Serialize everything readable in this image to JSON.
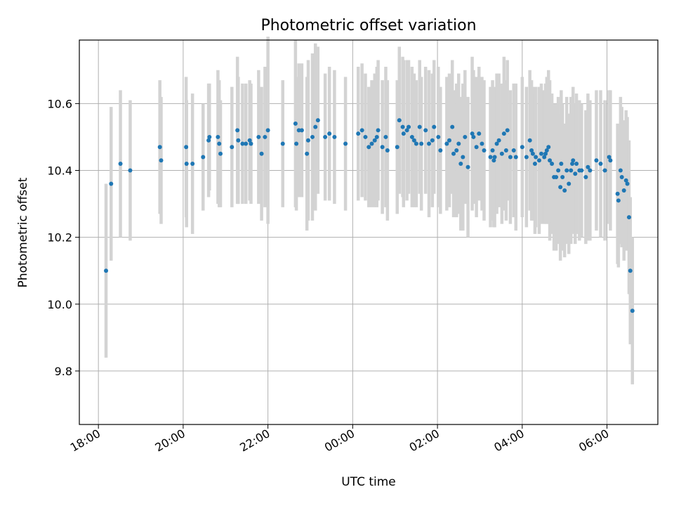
{
  "chart_data": {
    "type": "scatter",
    "title": "Photometric offset variation",
    "xlabel": "UTC time",
    "ylabel": "Photometric offset",
    "x_unit": "hours since 18:00 UTC",
    "xlim": [
      -0.45,
      13.2
    ],
    "ylim": [
      9.64,
      10.79
    ],
    "x_ticks": [
      0,
      2,
      4,
      6,
      8,
      10,
      12
    ],
    "x_tick_labels": [
      "18:00",
      "20:00",
      "22:00",
      "00:00",
      "02:00",
      "04:00",
      "06:00"
    ],
    "y_ticks": [
      9.8,
      10.0,
      10.2,
      10.4,
      10.6
    ],
    "y_tick_labels": [
      "9.8",
      "10.0",
      "10.2",
      "10.4",
      "10.6"
    ],
    "grid": true,
    "colors": {
      "point": "#1f77b4",
      "errorbar": "#d3d3d3",
      "grid": "#b0b0b0"
    },
    "points": [
      [
        0.18,
        10.1,
        0.26
      ],
      [
        0.3,
        10.36,
        0.23
      ],
      [
        0.52,
        10.42,
        0.22
      ],
      [
        0.75,
        10.4,
        0.21
      ],
      [
        1.45,
        10.47,
        0.2
      ],
      [
        1.48,
        10.43,
        0.19
      ],
      [
        2.07,
        10.47,
        0.21
      ],
      [
        2.08,
        10.42,
        0.19
      ],
      [
        2.22,
        10.42,
        0.21
      ],
      [
        2.47,
        10.44,
        0.16
      ],
      [
        2.6,
        10.49,
        0.17
      ],
      [
        2.62,
        10.5,
        0.16
      ],
      [
        2.82,
        10.5,
        0.2
      ],
      [
        2.85,
        10.48,
        0.19
      ],
      [
        2.88,
        10.45,
        0.16
      ],
      [
        3.15,
        10.47,
        0.18
      ],
      [
        3.28,
        10.52,
        0.22
      ],
      [
        3.3,
        10.49,
        0.19
      ],
      [
        3.4,
        10.48,
        0.18
      ],
      [
        3.48,
        10.48,
        0.18
      ],
      [
        3.57,
        10.49,
        0.18
      ],
      [
        3.6,
        10.48,
        0.18
      ],
      [
        3.78,
        10.5,
        0.2
      ],
      [
        3.85,
        10.45,
        0.2
      ],
      [
        3.93,
        10.5,
        0.21
      ],
      [
        4.0,
        10.52,
        0.28
      ],
      [
        4.35,
        10.48,
        0.19
      ],
      [
        4.65,
        10.54,
        0.25
      ],
      [
        4.67,
        10.48,
        0.2
      ],
      [
        4.73,
        10.52,
        0.2
      ],
      [
        4.8,
        10.52,
        0.2
      ],
      [
        4.92,
        10.45,
        0.23
      ],
      [
        4.95,
        10.49,
        0.24
      ],
      [
        5.05,
        10.5,
        0.25
      ],
      [
        5.12,
        10.53,
        0.25
      ],
      [
        5.18,
        10.55,
        0.22
      ],
      [
        5.35,
        10.5,
        0.19
      ],
      [
        5.45,
        10.51,
        0.2
      ],
      [
        5.57,
        10.5,
        0.2
      ],
      [
        5.83,
        10.48,
        0.2
      ],
      [
        6.13,
        10.51,
        0.2
      ],
      [
        6.22,
        10.52,
        0.2
      ],
      [
        6.3,
        10.5,
        0.19
      ],
      [
        6.38,
        10.47,
        0.18
      ],
      [
        6.45,
        10.48,
        0.19
      ],
      [
        6.52,
        10.49,
        0.2
      ],
      [
        6.57,
        10.5,
        0.21
      ],
      [
        6.6,
        10.52,
        0.21
      ],
      [
        6.7,
        10.47,
        0.2
      ],
      [
        6.78,
        10.5,
        0.21
      ],
      [
        6.82,
        10.46,
        0.21
      ],
      [
        7.05,
        10.47,
        0.2
      ],
      [
        7.1,
        10.55,
        0.22
      ],
      [
        7.18,
        10.53,
        0.21
      ],
      [
        7.2,
        10.51,
        0.22
      ],
      [
        7.28,
        10.52,
        0.21
      ],
      [
        7.32,
        10.53,
        0.2
      ],
      [
        7.4,
        10.5,
        0.21
      ],
      [
        7.45,
        10.49,
        0.2
      ],
      [
        7.5,
        10.48,
        0.19
      ],
      [
        7.58,
        10.53,
        0.2
      ],
      [
        7.62,
        10.48,
        0.2
      ],
      [
        7.72,
        10.52,
        0.19
      ],
      [
        7.8,
        10.48,
        0.22
      ],
      [
        7.88,
        10.49,
        0.2
      ],
      [
        7.92,
        10.53,
        0.2
      ],
      [
        8.02,
        10.5,
        0.21
      ],
      [
        8.07,
        10.46,
        0.19
      ],
      [
        8.22,
        10.48,
        0.2
      ],
      [
        8.28,
        10.49,
        0.2
      ],
      [
        8.35,
        10.53,
        0.2
      ],
      [
        8.38,
        10.45,
        0.19
      ],
      [
        8.45,
        10.46,
        0.2
      ],
      [
        8.5,
        10.48,
        0.21
      ],
      [
        8.55,
        10.42,
        0.2
      ],
      [
        8.6,
        10.44,
        0.22
      ],
      [
        8.65,
        10.5,
        0.2
      ],
      [
        8.72,
        10.41,
        0.21
      ],
      [
        8.82,
        10.51,
        0.23
      ],
      [
        8.85,
        10.5,
        0.2
      ],
      [
        8.92,
        10.47,
        0.21
      ],
      [
        8.98,
        10.51,
        0.2
      ],
      [
        9.05,
        10.48,
        0.2
      ],
      [
        9.1,
        10.46,
        0.21
      ],
      [
        9.25,
        10.44,
        0.21
      ],
      [
        9.3,
        10.46,
        0.21
      ],
      [
        9.33,
        10.43,
        0.2
      ],
      [
        9.35,
        10.44,
        0.21
      ],
      [
        9.4,
        10.48,
        0.21
      ],
      [
        9.45,
        10.49,
        0.2
      ],
      [
        9.52,
        10.45,
        0.21
      ],
      [
        9.57,
        10.51,
        0.23
      ],
      [
        9.62,
        10.46,
        0.21
      ],
      [
        9.65,
        10.52,
        0.21
      ],
      [
        9.72,
        10.44,
        0.2
      ],
      [
        9.8,
        10.46,
        0.2
      ],
      [
        9.85,
        10.44,
        0.22
      ],
      [
        10.0,
        10.47,
        0.21
      ],
      [
        10.1,
        10.44,
        0.21
      ],
      [
        10.18,
        10.49,
        0.21
      ],
      [
        10.22,
        10.46,
        0.21
      ],
      [
        10.25,
        10.45,
        0.2
      ],
      [
        10.3,
        10.42,
        0.21
      ],
      [
        10.32,
        10.44,
        0.21
      ],
      [
        10.4,
        10.43,
        0.22
      ],
      [
        10.45,
        10.45,
        0.21
      ],
      [
        10.52,
        10.44,
        0.2
      ],
      [
        10.55,
        10.45,
        0.21
      ],
      [
        10.58,
        10.46,
        0.22
      ],
      [
        10.62,
        10.47,
        0.23
      ],
      [
        10.65,
        10.43,
        0.24
      ],
      [
        10.7,
        10.42,
        0.21
      ],
      [
        10.75,
        10.38,
        0.22
      ],
      [
        10.8,
        10.38,
        0.22
      ],
      [
        10.85,
        10.4,
        0.22
      ],
      [
        10.9,
        10.35,
        0.22
      ],
      [
        10.92,
        10.42,
        0.22
      ],
      [
        10.95,
        10.38,
        0.22
      ],
      [
        11.0,
        10.34,
        0.2
      ],
      [
        11.05,
        10.4,
        0.22
      ],
      [
        11.1,
        10.36,
        0.21
      ],
      [
        11.15,
        10.4,
        0.22
      ],
      [
        11.18,
        10.42,
        0.2
      ],
      [
        11.2,
        10.43,
        0.22
      ],
      [
        11.25,
        10.39,
        0.21
      ],
      [
        11.28,
        10.42,
        0.21
      ],
      [
        11.35,
        10.4,
        0.21
      ],
      [
        11.4,
        10.4,
        0.2
      ],
      [
        11.5,
        10.38,
        0.2
      ],
      [
        11.55,
        10.41,
        0.22
      ],
      [
        11.6,
        10.4,
        0.21
      ],
      [
        11.75,
        10.43,
        0.21
      ],
      [
        11.85,
        10.42,
        0.22
      ],
      [
        11.95,
        10.4,
        0.21
      ],
      [
        12.05,
        10.44,
        0.2
      ],
      [
        12.08,
        10.43,
        0.21
      ],
      [
        12.25,
        10.33,
        0.21
      ],
      [
        12.27,
        10.31,
        0.2
      ],
      [
        12.32,
        10.4,
        0.22
      ],
      [
        12.35,
        10.38,
        0.21
      ],
      [
        12.4,
        10.34,
        0.21
      ],
      [
        12.45,
        10.37,
        0.21
      ],
      [
        12.48,
        10.36,
        0.2
      ],
      [
        12.52,
        10.26,
        0.23
      ],
      [
        12.55,
        10.1,
        0.22
      ],
      [
        12.6,
        9.98,
        0.22
      ]
    ]
  }
}
